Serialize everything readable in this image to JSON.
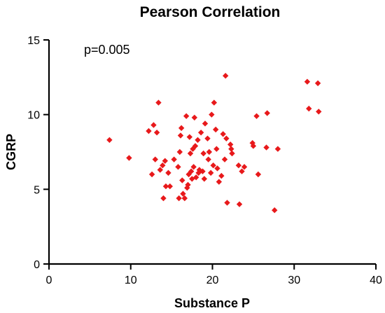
{
  "chart_data": {
    "type": "scatter",
    "title": "Pearson Correlation",
    "xlabel": "Substance P",
    "ylabel": "CGRP",
    "annotation": "p=0.005",
    "xlim": [
      0,
      40
    ],
    "ylim": [
      0,
      15
    ],
    "xticks": [
      "0",
      "10",
      "20",
      "30",
      "40"
    ],
    "yticks": [
      "0",
      "5",
      "10",
      "15"
    ],
    "grid": false,
    "marker_color": "#e8191b",
    "marker_shape": "diamond",
    "points": [
      {
        "x": 7.4,
        "y": 8.3
      },
      {
        "x": 9.8,
        "y": 7.1
      },
      {
        "x": 12.2,
        "y": 8.9
      },
      {
        "x": 12.6,
        "y": 6.0
      },
      {
        "x": 12.8,
        "y": 9.3
      },
      {
        "x": 13.0,
        "y": 7.0
      },
      {
        "x": 13.2,
        "y": 8.8
      },
      {
        "x": 13.4,
        "y": 10.8
      },
      {
        "x": 13.6,
        "y": 6.3
      },
      {
        "x": 13.9,
        "y": 6.6
      },
      {
        "x": 14.0,
        "y": 4.4
      },
      {
        "x": 14.2,
        "y": 6.9
      },
      {
        "x": 14.3,
        "y": 5.2
      },
      {
        "x": 14.6,
        "y": 6.1
      },
      {
        "x": 14.8,
        "y": 5.2
      },
      {
        "x": 15.3,
        "y": 7.0
      },
      {
        "x": 15.8,
        "y": 6.5
      },
      {
        "x": 15.9,
        "y": 4.4
      },
      {
        "x": 16.0,
        "y": 7.5
      },
      {
        "x": 16.1,
        "y": 8.6
      },
      {
        "x": 16.2,
        "y": 9.1
      },
      {
        "x": 16.3,
        "y": 5.6
      },
      {
        "x": 16.4,
        "y": 4.7
      },
      {
        "x": 16.6,
        "y": 4.4
      },
      {
        "x": 16.8,
        "y": 9.9
      },
      {
        "x": 16.9,
        "y": 5.1
      },
      {
        "x": 17.0,
        "y": 5.3
      },
      {
        "x": 17.1,
        "y": 6.0
      },
      {
        "x": 17.2,
        "y": 8.5
      },
      {
        "x": 17.3,
        "y": 7.4
      },
      {
        "x": 17.4,
        "y": 6.2
      },
      {
        "x": 17.5,
        "y": 5.7
      },
      {
        "x": 17.6,
        "y": 7.7
      },
      {
        "x": 17.7,
        "y": 6.5
      },
      {
        "x": 17.8,
        "y": 9.8
      },
      {
        "x": 17.9,
        "y": 7.9
      },
      {
        "x": 18.0,
        "y": 5.8
      },
      {
        "x": 18.2,
        "y": 8.3
      },
      {
        "x": 18.3,
        "y": 6.1
      },
      {
        "x": 18.4,
        "y": 6.3
      },
      {
        "x": 18.6,
        "y": 8.8
      },
      {
        "x": 18.8,
        "y": 6.2
      },
      {
        "x": 18.9,
        "y": 7.4
      },
      {
        "x": 19.0,
        "y": 5.7
      },
      {
        "x": 19.1,
        "y": 9.4
      },
      {
        "x": 19.4,
        "y": 8.4
      },
      {
        "x": 19.5,
        "y": 7.0
      },
      {
        "x": 19.6,
        "y": 7.5
      },
      {
        "x": 19.8,
        "y": 6.1
      },
      {
        "x": 19.9,
        "y": 10.0
      },
      {
        "x": 20.1,
        "y": 6.6
      },
      {
        "x": 20.2,
        "y": 10.8
      },
      {
        "x": 20.4,
        "y": 9.0
      },
      {
        "x": 20.5,
        "y": 7.7
      },
      {
        "x": 20.6,
        "y": 6.4
      },
      {
        "x": 20.8,
        "y": 5.5
      },
      {
        "x": 21.1,
        "y": 5.9
      },
      {
        "x": 21.3,
        "y": 8.7
      },
      {
        "x": 21.5,
        "y": 7.0
      },
      {
        "x": 21.6,
        "y": 12.6
      },
      {
        "x": 21.7,
        "y": 8.4
      },
      {
        "x": 21.8,
        "y": 4.1
      },
      {
        "x": 22.2,
        "y": 8.0
      },
      {
        "x": 22.3,
        "y": 7.7
      },
      {
        "x": 22.4,
        "y": 7.4
      },
      {
        "x": 23.2,
        "y": 6.6
      },
      {
        "x": 23.3,
        "y": 4.0
      },
      {
        "x": 23.6,
        "y": 6.2
      },
      {
        "x": 23.9,
        "y": 6.5
      },
      {
        "x": 24.9,
        "y": 8.1
      },
      {
        "x": 25.0,
        "y": 7.9
      },
      {
        "x": 25.4,
        "y": 9.9
      },
      {
        "x": 25.6,
        "y": 6.0
      },
      {
        "x": 26.6,
        "y": 7.8
      },
      {
        "x": 26.7,
        "y": 10.1
      },
      {
        "x": 27.6,
        "y": 3.6
      },
      {
        "x": 28.0,
        "y": 7.7
      },
      {
        "x": 31.6,
        "y": 12.2
      },
      {
        "x": 31.8,
        "y": 10.4
      },
      {
        "x": 32.9,
        "y": 12.1
      },
      {
        "x": 33.0,
        "y": 10.2
      }
    ]
  }
}
